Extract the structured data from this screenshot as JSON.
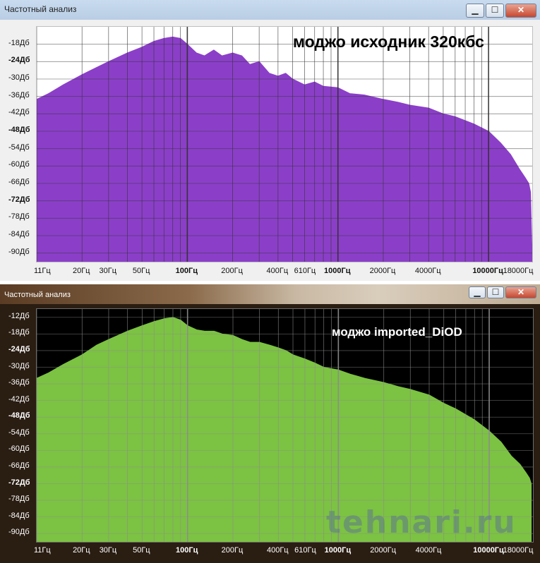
{
  "windows": [
    {
      "title": "Частотный анализ",
      "annotation": "моджо исходник 320кбс"
    },
    {
      "title": "Частотный анализ",
      "annotation": "моджо imported_DiOD"
    }
  ],
  "watermark": "tehnari.ru",
  "colors": {
    "top_fill": "#8b3fc8",
    "bottom_fill": "#7cc243",
    "top_grid": "#333333",
    "bottom_grid": "#8c8c8c"
  },
  "window_controls": {
    "minimize": "▁",
    "maximize": "☐",
    "close": "✕"
  },
  "chart_data": [
    {
      "type": "area",
      "title": "моджо исходник 320кбс",
      "xscale": "log",
      "xlim": [
        10,
        19500
      ],
      "ylim": [
        -93,
        -12
      ],
      "y_ticks": [
        "-18Дб",
        "-24Дб",
        "-30Дб",
        "-36Дб",
        "-42Дб",
        "-48Дб",
        "-54Дб",
        "-60Дб",
        "-66Дб",
        "-72Дб",
        "-78Дб",
        "-84Дб",
        "-90Дб"
      ],
      "y_tick_values": [
        -18,
        -24,
        -30,
        -36,
        -42,
        -48,
        -54,
        -60,
        -66,
        -72,
        -78,
        -84,
        -90
      ],
      "y_bold": [
        -24,
        -48,
        -72
      ],
      "x_ticks": [
        "11Гц",
        "20Гц",
        "30Гц",
        "50Гц",
        "100Гц",
        "200Гц",
        "400Гц",
        "610Гц",
        "1000Гц",
        "2000Гц",
        "4000Гц",
        "10000Гц",
        "18000Гц"
      ],
      "x_tick_values": [
        11,
        20,
        30,
        50,
        100,
        200,
        400,
        610,
        1000,
        2000,
        4000,
        10000,
        18000
      ],
      "x_bold": [
        100,
        1000,
        10000
      ],
      "x": [
        10,
        12,
        15,
        20,
        25,
        30,
        40,
        50,
        60,
        70,
        80,
        90,
        100,
        115,
        130,
        150,
        170,
        200,
        230,
        260,
        300,
        350,
        400,
        450,
        500,
        600,
        700,
        800,
        1000,
        1200,
        1500,
        2000,
        2500,
        3000,
        4000,
        5000,
        6000,
        8000,
        10000,
        12000,
        14000,
        16000,
        17500,
        18500,
        19000,
        19500
      ],
      "y": [
        -37,
        -35,
        -32,
        -28.5,
        -26,
        -24,
        -21,
        -19,
        -17,
        -16,
        -15.5,
        -16,
        -18,
        -21,
        -22,
        -20,
        -22,
        -21,
        -22,
        -25,
        -24,
        -28,
        -29,
        -28,
        -30,
        -32,
        -31,
        -32.5,
        -33,
        -35,
        -35.5,
        -37,
        -38,
        -39,
        -40,
        -42,
        -43,
        -45.5,
        -48,
        -52,
        -56,
        -61,
        -64,
        -66,
        -69,
        -92
      ]
    },
    {
      "type": "area",
      "title": "моджо imported_DiOD",
      "xscale": "log",
      "xlim": [
        10,
        19500
      ],
      "ylim": [
        -93,
        -9
      ],
      "y_ticks": [
        "-12Дб",
        "-18Дб",
        "-24Дб",
        "-30Дб",
        "-36Дб",
        "-42Дб",
        "-48Дб",
        "-54Дб",
        "-60Дб",
        "-66Дб",
        "-72Дб",
        "-78Дб",
        "-84Дб",
        "-90Дб"
      ],
      "y_tick_values": [
        -12,
        -18,
        -24,
        -30,
        -36,
        -42,
        -48,
        -54,
        -60,
        -66,
        -72,
        -78,
        -84,
        -90
      ],
      "y_bold": [
        -24,
        -48,
        -72
      ],
      "x_ticks": [
        "11Гц",
        "20Гц",
        "30Гц",
        "50Гц",
        "100Гц",
        "200Гц",
        "400Гц",
        "610Гц",
        "1000Гц",
        "2000Гц",
        "4000Гц",
        "10000Гц",
        "18000Гц"
      ],
      "x_tick_values": [
        11,
        20,
        30,
        50,
        100,
        200,
        400,
        610,
        1000,
        2000,
        4000,
        10000,
        18000
      ],
      "x_bold": [
        100,
        1000,
        10000
      ],
      "x": [
        10,
        12,
        15,
        20,
        25,
        30,
        40,
        50,
        60,
        70,
        80,
        90,
        100,
        115,
        130,
        150,
        170,
        200,
        230,
        260,
        300,
        350,
        400,
        450,
        500,
        600,
        700,
        800,
        1000,
        1200,
        1500,
        2000,
        2500,
        3000,
        4000,
        5000,
        6000,
        8000,
        10000,
        12000,
        14000,
        16000,
        17500,
        18500,
        19000
      ],
      "y": [
        -34,
        -32,
        -29,
        -25.5,
        -22,
        -20,
        -17,
        -15,
        -13.5,
        -12.5,
        -12,
        -13,
        -15,
        -16.5,
        -17,
        -17,
        -18,
        -18.5,
        -20,
        -21,
        -21,
        -22,
        -23,
        -24,
        -25.5,
        -27,
        -28.5,
        -30,
        -31,
        -32.5,
        -34,
        -35.5,
        -37,
        -38,
        -40,
        -43,
        -45,
        -49,
        -53,
        -57,
        -62,
        -65,
        -68,
        -70,
        -72
      ]
    }
  ]
}
